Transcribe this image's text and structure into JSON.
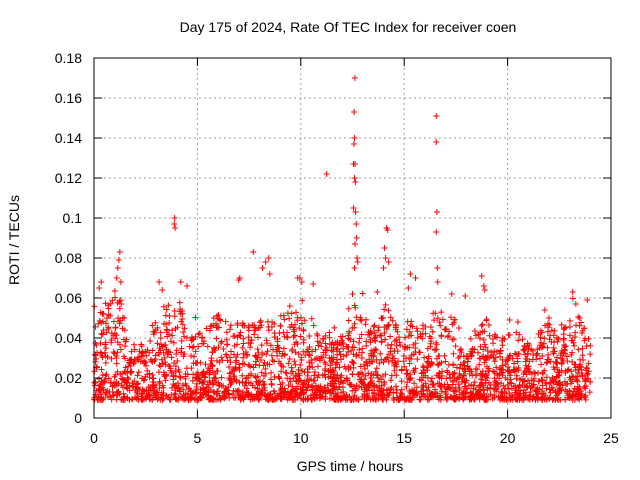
{
  "chart_data": {
    "type": "scatter",
    "title": "Day 175 of 2024, Rate Of TEC Index for receiver coen",
    "xlabel": "GPS time / hours",
    "ylabel": "ROTI / TECUs",
    "xlim": [
      0,
      25
    ],
    "ylim": [
      0,
      0.18
    ],
    "xticks": [
      0,
      5,
      10,
      15,
      20,
      25
    ],
    "xtick_labels": [
      "0",
      "5",
      "10",
      "15",
      "20",
      "25"
    ],
    "yticks": [
      0,
      0.02,
      0.04,
      0.06,
      0.08,
      0.1,
      0.12,
      0.14,
      0.16,
      0.18
    ],
    "ytick_labels": [
      "0",
      "0.02",
      "0.04",
      "0.06",
      "0.08",
      "0.1",
      "0.12",
      "0.14",
      "0.16",
      "0.18"
    ],
    "grid": true,
    "marker": "+",
    "color": "#ff0000",
    "series": [
      {
        "name": "ROTI",
        "outliers": [
          {
            "x": 12.62,
            "y": 0.17
          },
          {
            "x": 12.58,
            "y": 0.153
          },
          {
            "x": 12.6,
            "y": 0.14
          },
          {
            "x": 12.57,
            "y": 0.137
          },
          {
            "x": 12.62,
            "y": 0.127
          },
          {
            "x": 12.55,
            "y": 0.127
          },
          {
            "x": 12.6,
            "y": 0.12
          },
          {
            "x": 12.64,
            "y": 0.118
          },
          {
            "x": 11.25,
            "y": 0.122
          },
          {
            "x": 12.55,
            "y": 0.105
          },
          {
            "x": 12.65,
            "y": 0.103
          },
          {
            "x": 12.68,
            "y": 0.097
          },
          {
            "x": 12.7,
            "y": 0.09
          },
          {
            "x": 12.62,
            "y": 0.087
          },
          {
            "x": 12.72,
            "y": 0.08
          },
          {
            "x": 12.75,
            "y": 0.078
          },
          {
            "x": 12.6,
            "y": 0.075
          },
          {
            "x": 16.55,
            "y": 0.151
          },
          {
            "x": 16.55,
            "y": 0.138
          },
          {
            "x": 16.58,
            "y": 0.103
          },
          {
            "x": 16.55,
            "y": 0.093
          },
          {
            "x": 16.6,
            "y": 0.075
          },
          {
            "x": 16.62,
            "y": 0.068
          },
          {
            "x": 3.9,
            "y": 0.1
          },
          {
            "x": 3.88,
            "y": 0.097
          },
          {
            "x": 3.92,
            "y": 0.095
          },
          {
            "x": 14.15,
            "y": 0.095
          },
          {
            "x": 14.2,
            "y": 0.094
          },
          {
            "x": 14.05,
            "y": 0.085
          },
          {
            "x": 14.1,
            "y": 0.08
          },
          {
            "x": 14.25,
            "y": 0.078
          },
          {
            "x": 14.0,
            "y": 0.075
          },
          {
            "x": 1.25,
            "y": 0.083
          },
          {
            "x": 1.2,
            "y": 0.079
          },
          {
            "x": 1.15,
            "y": 0.075
          },
          {
            "x": 1.1,
            "y": 0.07
          },
          {
            "x": 1.3,
            "y": 0.068
          },
          {
            "x": 7.7,
            "y": 0.083
          },
          {
            "x": 8.45,
            "y": 0.08
          },
          {
            "x": 8.3,
            "y": 0.078
          },
          {
            "x": 8.15,
            "y": 0.075
          },
          {
            "x": 8.5,
            "y": 0.072
          },
          {
            "x": 9.85,
            "y": 0.07
          },
          {
            "x": 9.95,
            "y": 0.07
          },
          {
            "x": 10.05,
            "y": 0.068
          },
          {
            "x": 15.3,
            "y": 0.072
          },
          {
            "x": 15.55,
            "y": 0.07
          },
          {
            "x": 15.2,
            "y": 0.065
          },
          {
            "x": 18.75,
            "y": 0.071
          },
          {
            "x": 18.85,
            "y": 0.066
          },
          {
            "x": 18.9,
            "y": 0.064
          },
          {
            "x": 3.15,
            "y": 0.068
          },
          {
            "x": 3.3,
            "y": 0.064
          },
          {
            "x": 4.2,
            "y": 0.068
          },
          {
            "x": 4.5,
            "y": 0.066
          },
          {
            "x": 0.35,
            "y": 0.068
          },
          {
            "x": 0.25,
            "y": 0.065
          },
          {
            "x": 7.05,
            "y": 0.07
          },
          {
            "x": 7.0,
            "y": 0.069
          },
          {
            "x": 10.6,
            "y": 0.067
          },
          {
            "x": 12.5,
            "y": 0.062
          },
          {
            "x": 13.7,
            "y": 0.063
          },
          {
            "x": 17.3,
            "y": 0.062
          },
          {
            "x": 17.95,
            "y": 0.061
          },
          {
            "x": 21.8,
            "y": 0.054
          },
          {
            "x": 22.0,
            "y": 0.05
          },
          {
            "x": 23.15,
            "y": 0.063
          },
          {
            "x": 23.3,
            "y": 0.057
          },
          {
            "x": 23.85,
            "y": 0.059
          },
          {
            "x": 20.1,
            "y": 0.049
          },
          {
            "x": 20.5,
            "y": 0.048
          }
        ]
      }
    ]
  }
}
